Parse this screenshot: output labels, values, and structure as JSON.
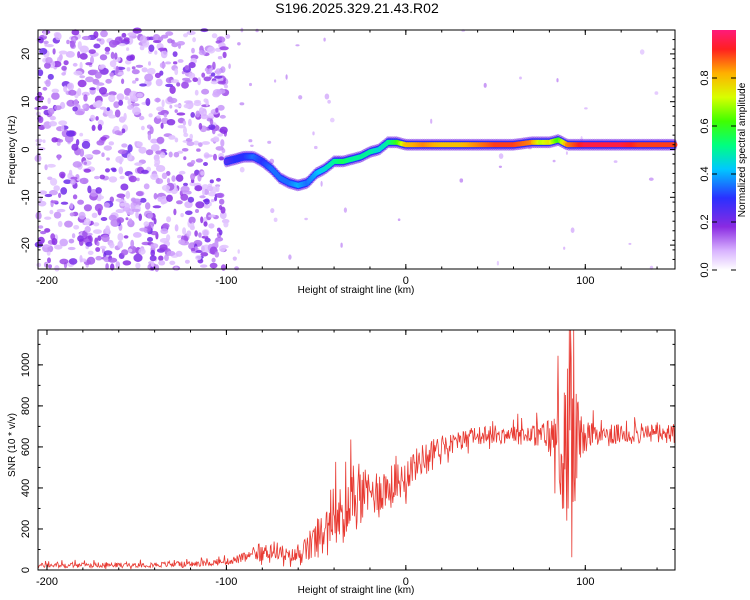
{
  "figure_title": "S196.2025.329.21.43.R02",
  "chart_data": [
    {
      "type": "heatmap",
      "title": "S196.2025.329.21.43.R02",
      "xlabel": "Height of straight line (km)",
      "ylabel": "Frequency (Hz)",
      "xlim": [
        -205,
        150
      ],
      "ylim": [
        -25,
        25
      ],
      "xticks": [
        -200,
        -100,
        0,
        100
      ],
      "yticks": [
        20,
        10,
        0,
        -10,
        -20
      ],
      "colorbar": {
        "label": "Normalized spectral amplitude",
        "range": [
          0,
          1
        ],
        "ticks": [
          0.0,
          0.2,
          0.4,
          0.6,
          0.8
        ]
      },
      "noise_region_x": [
        -205,
        -100
      ],
      "ridge": {
        "x": [
          -100,
          -95,
          -90,
          -85,
          -80,
          -75,
          -70,
          -65,
          -60,
          -55,
          -50,
          -45,
          -40,
          -35,
          -30,
          -25,
          -20,
          -15,
          -10,
          -5,
          0,
          10,
          20,
          30,
          40,
          50,
          60,
          70,
          75,
          80,
          85,
          90,
          100,
          110,
          120,
          130,
          140,
          150
        ],
        "y": [
          -2.5,
          -2,
          -1.5,
          -1.5,
          -2.5,
          -4,
          -6,
          -7,
          -7.5,
          -7,
          -5,
          -4,
          -2.5,
          -2.5,
          -2,
          -1.5,
          -0.5,
          0,
          1.5,
          1.5,
          1,
          1,
          1,
          1,
          1,
          1,
          1,
          1.5,
          1.5,
          1.5,
          2,
          1,
          1,
          1,
          1,
          1,
          1,
          1
        ],
        "amplitude": [
          0.25,
          0.3,
          0.3,
          0.35,
          0.3,
          0.35,
          0.35,
          0.35,
          0.4,
          0.35,
          0.4,
          0.45,
          0.5,
          0.55,
          0.5,
          0.5,
          0.5,
          0.45,
          0.5,
          0.6,
          0.8,
          0.85,
          0.8,
          0.8,
          0.85,
          0.9,
          0.9,
          0.85,
          0.7,
          0.75,
          0.6,
          0.85,
          0.95,
          0.95,
          0.95,
          0.9,
          0.9,
          0.9
        ]
      }
    },
    {
      "type": "line",
      "xlabel": "Height of straight line (km)",
      "ylabel": "SNR (10 * v/v)",
      "xlim": [
        -205,
        150
      ],
      "ylim": [
        0,
        1170
      ],
      "xticks": [
        -200,
        -100,
        0,
        100
      ],
      "yticks": [
        0,
        200,
        400,
        600,
        800,
        1000
      ],
      "series": [
        {
          "name": "SNR",
          "color": "#e83a32",
          "x": [
            -205,
            -150,
            -120,
            -100,
            -90,
            -80,
            -75,
            -70,
            -65,
            -60,
            -55,
            -50,
            -45,
            -40,
            -35,
            -30,
            -25,
            -20,
            -15,
            -10,
            -5,
            0,
            5,
            10,
            15,
            20,
            25,
            30,
            35,
            40,
            50,
            60,
            70,
            75,
            80,
            85,
            88,
            90,
            92,
            95,
            98,
            100,
            110,
            120,
            130,
            140,
            150
          ],
          "base": [
            22,
            25,
            28,
            40,
            60,
            80,
            100,
            90,
            60,
            75,
            100,
            150,
            180,
            230,
            280,
            330,
            350,
            370,
            390,
            400,
            420,
            470,
            510,
            550,
            580,
            600,
            615,
            630,
            645,
            655,
            660,
            665,
            655,
            660,
            650,
            630,
            600,
            560,
            640,
            620,
            640,
            650,
            660,
            660,
            665,
            665,
            665
          ],
          "amp": [
            12,
            12,
            15,
            15,
            25,
            35,
            50,
            40,
            40,
            45,
            70,
            100,
            110,
            130,
            150,
            150,
            140,
            120,
            110,
            110,
            100,
            90,
            80,
            70,
            60,
            55,
            50,
            50,
            45,
            45,
            45,
            50,
            50,
            60,
            100,
            200,
            350,
            450,
            500,
            300,
            150,
            80,
            50,
            50,
            50,
            50,
            50
          ]
        }
      ]
    }
  ]
}
